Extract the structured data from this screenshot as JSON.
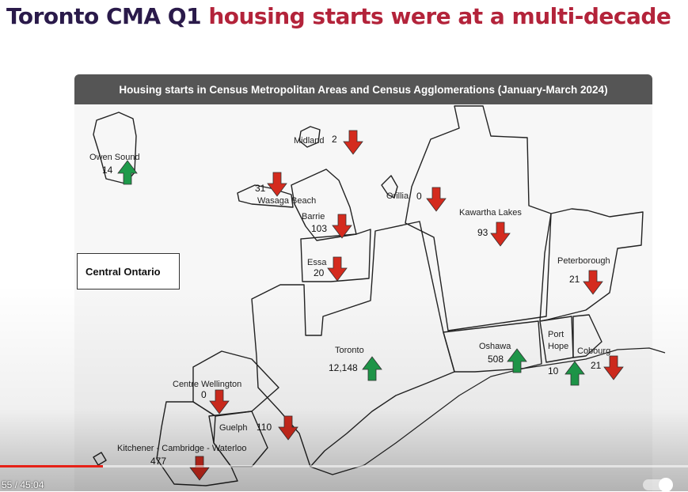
{
  "headline": {
    "part1": "Toronto CMA Q1 ",
    "part2": "housing starts were at a multi-decade"
  },
  "map": {
    "title": "Housing starts in Census Metropolitan Areas and Census Agglomerations (January-March 2024)",
    "region_label": "Central Ontario",
    "colors": {
      "up": "#1e9a4a",
      "down": "#d42b1e"
    },
    "places": [
      {
        "name": "Owen Sound",
        "value": "14",
        "trend": "up"
      },
      {
        "name": "Midland",
        "value": "2",
        "trend": "down"
      },
      {
        "name": "Wasaga Beach",
        "value": "31",
        "trend": "down"
      },
      {
        "name": "Barrie",
        "value": "103",
        "trend": "down"
      },
      {
        "name": "Orillia",
        "value": "0",
        "trend": "down"
      },
      {
        "name": "Kawartha Lakes",
        "value": "93",
        "trend": "down"
      },
      {
        "name": "Essa",
        "value": "20",
        "trend": "down"
      },
      {
        "name": "Peterborough",
        "value": "21",
        "trend": "down"
      },
      {
        "name": "Toronto",
        "value": "12,148",
        "trend": "up"
      },
      {
        "name": "Oshawa",
        "value": "508",
        "trend": "up"
      },
      {
        "name": "Port Hope",
        "value": "10",
        "trend": "up"
      },
      {
        "name": "Cobourg",
        "value": "21",
        "trend": "down"
      },
      {
        "name": "Centre Wellington",
        "value": "0",
        "trend": "down"
      },
      {
        "name": "Guelph",
        "value": "110",
        "trend": "down"
      },
      {
        "name": "Kitchener - Cambridge - Waterloo",
        "value": "477",
        "trend": "down"
      }
    ]
  },
  "player": {
    "time": "55 / 45:04",
    "progress": 0.15
  }
}
